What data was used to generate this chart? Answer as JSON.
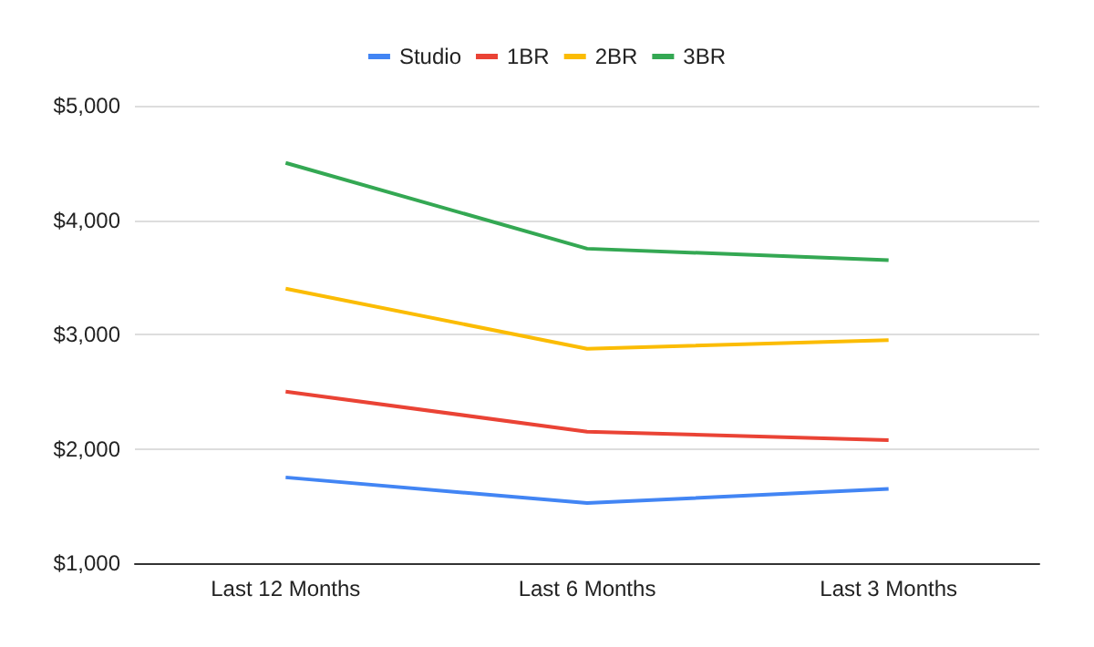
{
  "chart_data": {
    "type": "line",
    "categories": [
      "Last 12 Months",
      "Last 6 Months",
      "Last 3 Months"
    ],
    "series": [
      {
        "name": "Studio",
        "color": "#4285f4",
        "values": [
          1750,
          1525,
          1650
        ]
      },
      {
        "name": "1BR",
        "color": "#ea4335",
        "values": [
          2500,
          2150,
          2075
        ]
      },
      {
        "name": "2BR",
        "color": "#fbbc04",
        "values": [
          3400,
          2875,
          2950
        ]
      },
      {
        "name": "3BR",
        "color": "#34a853",
        "values": [
          4500,
          3750,
          3650
        ]
      }
    ],
    "ylim": [
      1000,
      5000
    ],
    "yticks": [
      {
        "value": 1000,
        "label": "$1,000"
      },
      {
        "value": 2000,
        "label": "$2,000"
      },
      {
        "value": 3000,
        "label": "$3,000"
      },
      {
        "value": 4000,
        "label": "$4,000"
      },
      {
        "value": 5000,
        "label": "$5,000"
      }
    ],
    "grid": "y",
    "legend": "top",
    "marker": "none",
    "line_style": "solid"
  }
}
